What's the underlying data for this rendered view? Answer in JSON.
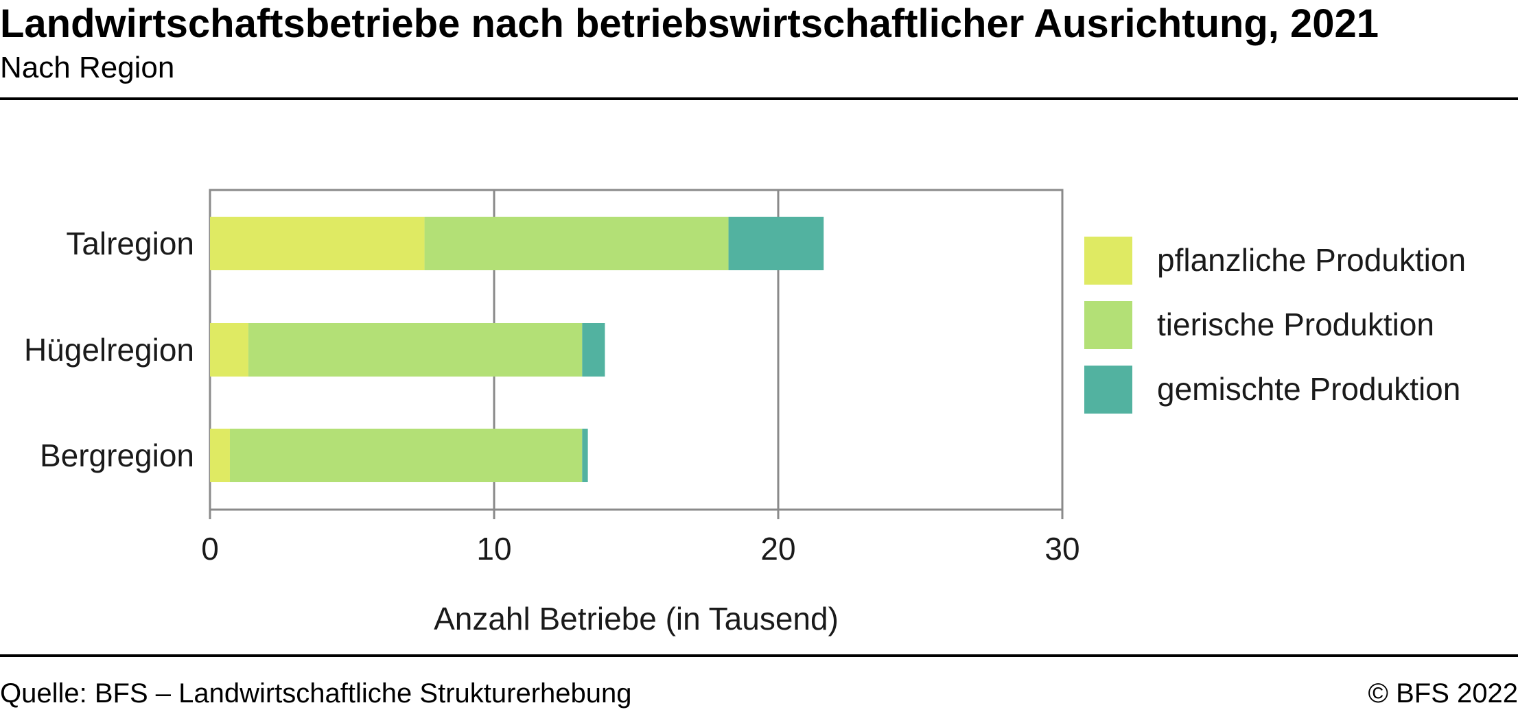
{
  "header": {
    "title": "Landwirtschaftsbetriebe nach betriebswirtschaftlicher Ausrichtung, 2021",
    "subtitle": "Nach Region"
  },
  "footer": {
    "source": "Quelle: BFS – Landwirtschaftliche Strukturerhebung",
    "copyright": "© BFS 2022"
  },
  "chart_data": {
    "type": "bar",
    "orientation": "horizontal",
    "stacked": true,
    "categories": [
      "Talregion",
      "Hügelregion",
      "Bergregion"
    ],
    "series": [
      {
        "name": "pflanzliche Produktion",
        "color": "#dfea63",
        "values": [
          7.55,
          1.35,
          0.7
        ]
      },
      {
        "name": "tierische Produktion",
        "color": "#b3e076",
        "values": [
          10.7,
          11.75,
          12.4
        ]
      },
      {
        "name": "gemischte Produktion",
        "color": "#52b2a0",
        "values": [
          3.35,
          0.8,
          0.2
        ]
      }
    ],
    "xlabel": "Anzahl Betriebe (in Tausend)",
    "ylabel": "",
    "xlim": [
      0,
      30
    ],
    "xticks": [
      0,
      10,
      20,
      30
    ],
    "grid": true,
    "legend_position": "right"
  }
}
